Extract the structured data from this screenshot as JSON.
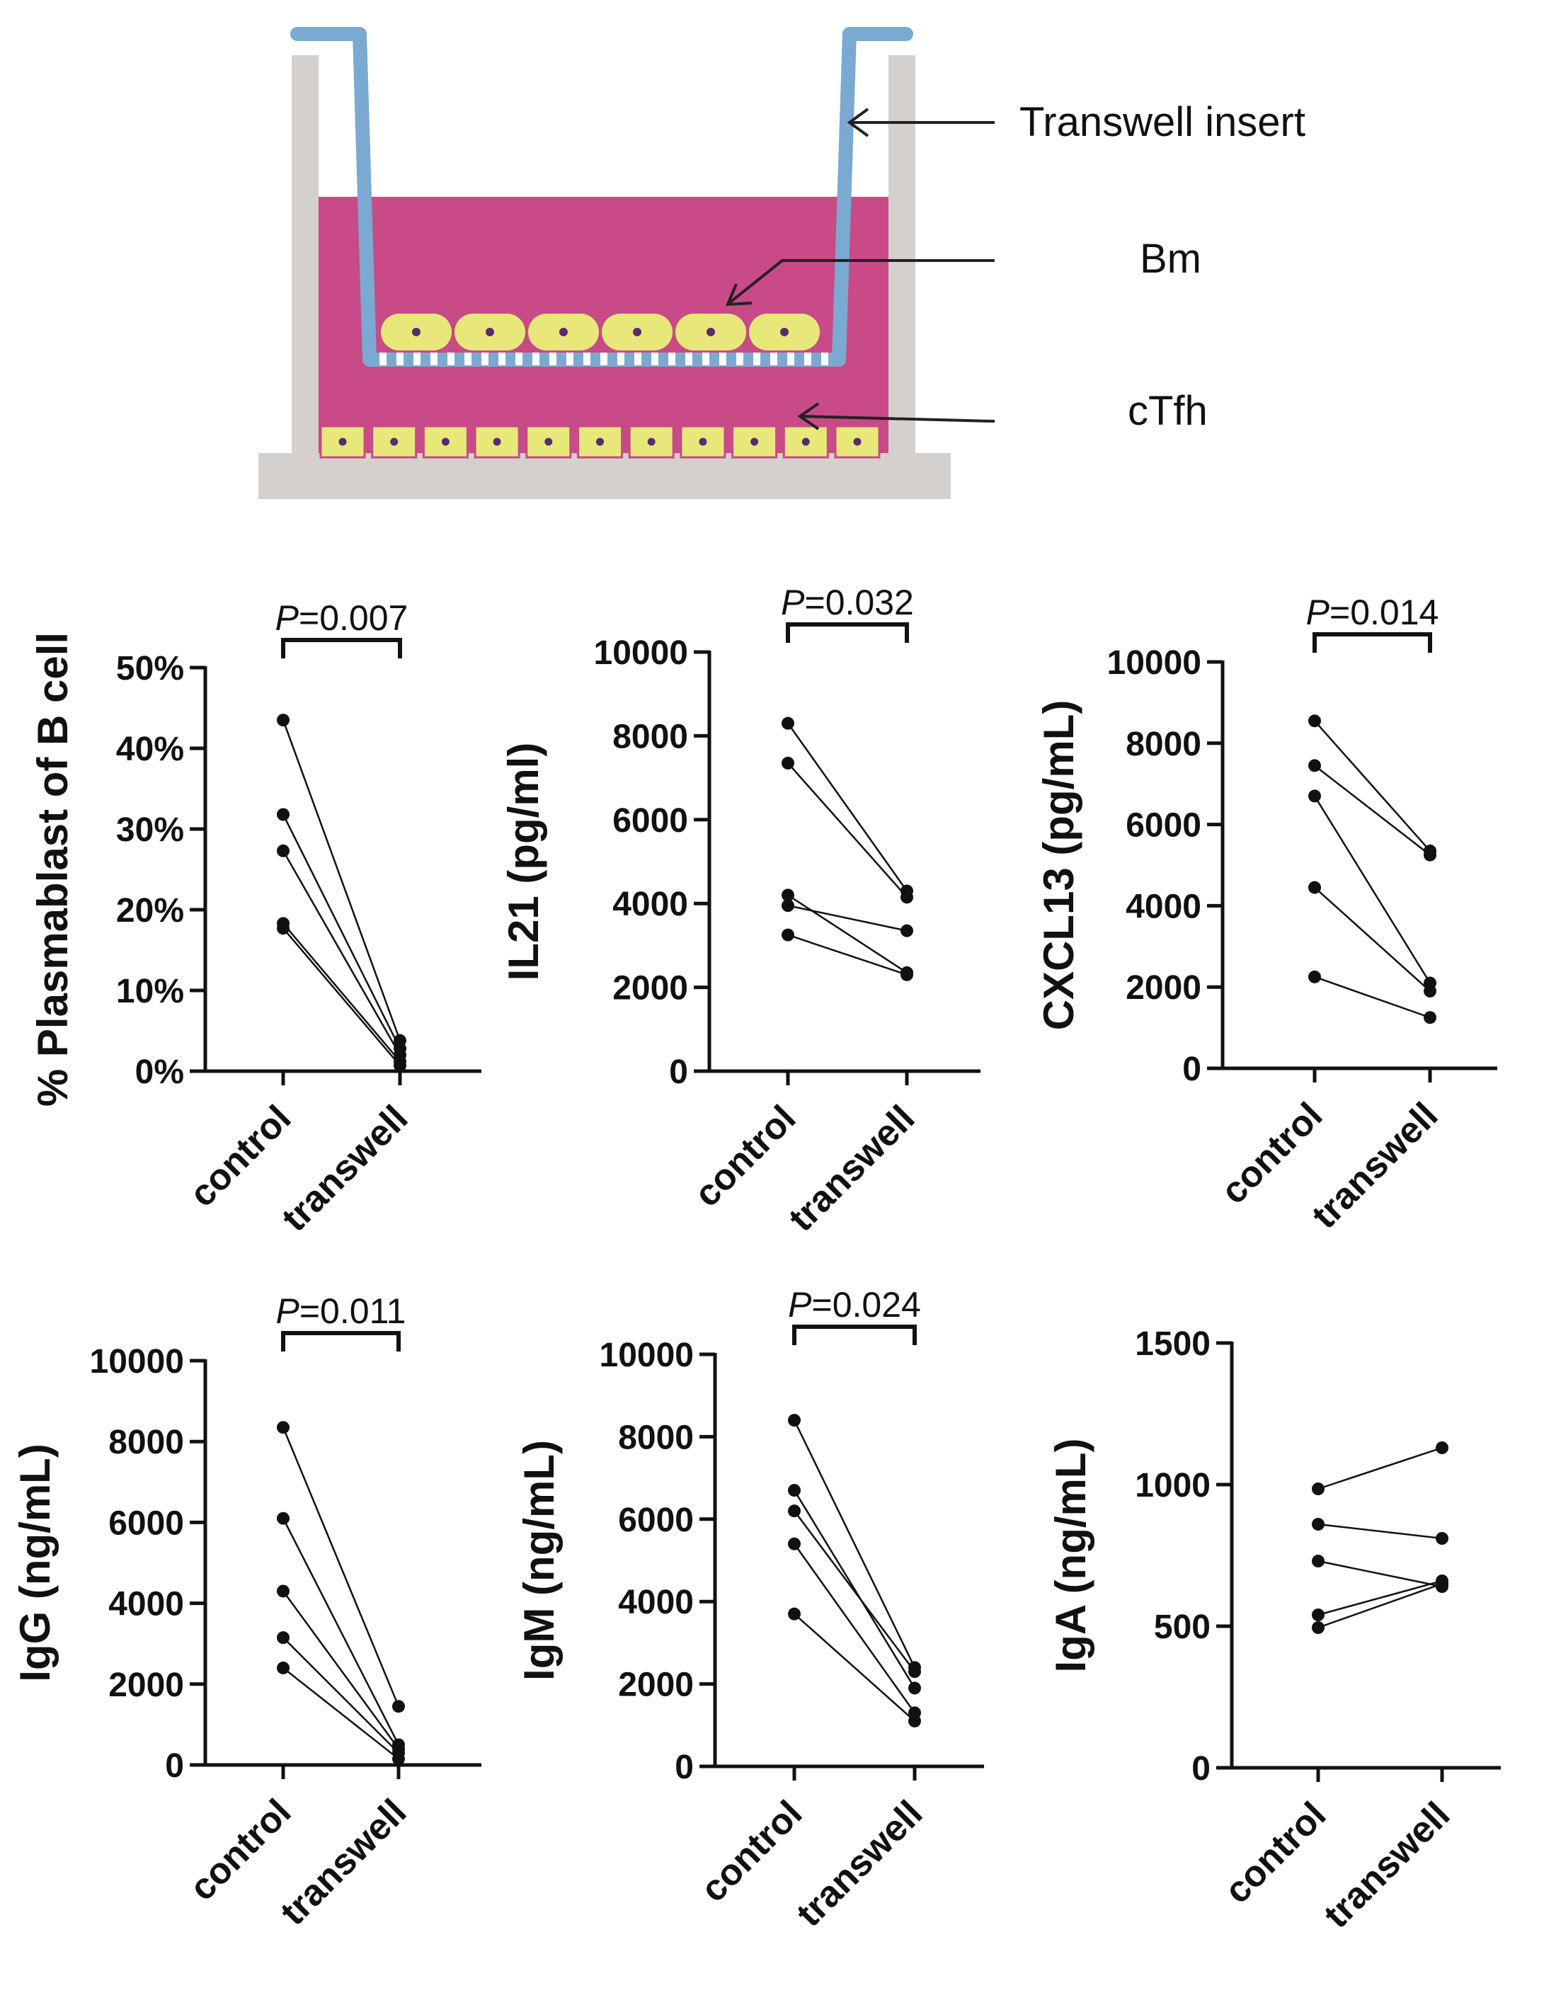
{
  "diagram": {
    "labels": {
      "insert": "Transwell insert",
      "bm": "Bm",
      "ctfh": "cTfh"
    },
    "colors": {
      "medium": "#c84a87",
      "insert": "#7aa9d1",
      "wall": "#d4d0cd",
      "cell": "#e8e87a",
      "nucleus": "#5a2a6e",
      "arrow": "#222222"
    }
  },
  "chart_data": [
    {
      "type": "paired-scatter",
      "ylabel": "% Plasmablast of B cell",
      "categories": [
        "control",
        "transwell"
      ],
      "ylim": [
        0,
        50
      ],
      "yticks": [
        0,
        10,
        20,
        30,
        40,
        50
      ],
      "ytick_labels": [
        "0%",
        "10%",
        "20%",
        "30%",
        "40%",
        "50%"
      ],
      "pvalue": {
        "p": "P",
        "rest": "=0.007"
      },
      "pairs": [
        [
          43.5,
          3.8
        ],
        [
          31.8,
          2.8
        ],
        [
          27.3,
          2.0
        ],
        [
          18.3,
          1.2
        ],
        [
          17.7,
          0.7
        ]
      ]
    },
    {
      "type": "paired-scatter",
      "ylabel": "IL21 (pg/ml)",
      "categories": [
        "control",
        "transwell"
      ],
      "ylim": [
        0,
        10000
      ],
      "yticks": [
        0,
        2000,
        4000,
        6000,
        8000,
        10000
      ],
      "ytick_labels": [
        "0",
        "2000",
        "4000",
        "6000",
        "8000",
        "10000"
      ],
      "pvalue": {
        "p": "P",
        "rest": "=0.032"
      },
      "pairs": [
        [
          8300,
          4300
        ],
        [
          7350,
          4150
        ],
        [
          4200,
          2350
        ],
        [
          3950,
          3350
        ],
        [
          3250,
          2300
        ]
      ]
    },
    {
      "type": "paired-scatter",
      "ylabel": "CXCL13 (pg/mL)",
      "categories": [
        "control",
        "transwell"
      ],
      "ylim": [
        0,
        10000
      ],
      "yticks": [
        0,
        2000,
        4000,
        6000,
        8000,
        10000
      ],
      "ytick_labels": [
        "0",
        "2000",
        "4000",
        "6000",
        "8000",
        "10000"
      ],
      "pvalue": {
        "p": "P",
        "rest": "=0.014"
      },
      "pairs": [
        [
          8550,
          5350
        ],
        [
          7450,
          5250
        ],
        [
          6700,
          2100
        ],
        [
          4450,
          1900
        ],
        [
          2250,
          1250
        ]
      ]
    },
    {
      "type": "paired-scatter",
      "ylabel": "IgG (ng/mL)",
      "categories": [
        "control",
        "transwell"
      ],
      "ylim": [
        0,
        10000
      ],
      "yticks": [
        0,
        2000,
        4000,
        6000,
        8000,
        10000
      ],
      "ytick_labels": [
        "0",
        "2000",
        "4000",
        "6000",
        "8000",
        "10000"
      ],
      "pvalue": {
        "p": "P",
        "rest": "=0.011"
      },
      "pairs": [
        [
          8350,
          1450
        ],
        [
          6100,
          500
        ],
        [
          4300,
          400
        ],
        [
          3150,
          300
        ],
        [
          2400,
          150
        ]
      ]
    },
    {
      "type": "paired-scatter",
      "ylabel": "IgM (ng/mL)",
      "categories": [
        "control",
        "transwell"
      ],
      "ylim": [
        0,
        10000
      ],
      "yticks": [
        0,
        2000,
        4000,
        6000,
        8000,
        10000
      ],
      "ytick_labels": [
        "0",
        "2000",
        "4000",
        "6000",
        "8000",
        "10000"
      ],
      "pvalue": {
        "p": "P",
        "rest": "=0.024"
      },
      "pairs": [
        [
          8400,
          2400
        ],
        [
          6700,
          1900
        ],
        [
          6200,
          2300
        ],
        [
          5400,
          1300
        ],
        [
          3700,
          1100
        ]
      ]
    },
    {
      "type": "paired-scatter",
      "ylabel": "IgA (ng/mL)",
      "categories": [
        "control",
        "transwell"
      ],
      "ylim": [
        0,
        1500
      ],
      "yticks": [
        0,
        500,
        1000,
        1500
      ],
      "ytick_labels": [
        "0",
        "500",
        "1000",
        "1500"
      ],
      "pvalue": null,
      "pairs": [
        [
          985,
          1130
        ],
        [
          860,
          810
        ],
        [
          730,
          640
        ],
        [
          540,
          660
        ],
        [
          495,
          650
        ]
      ]
    }
  ]
}
